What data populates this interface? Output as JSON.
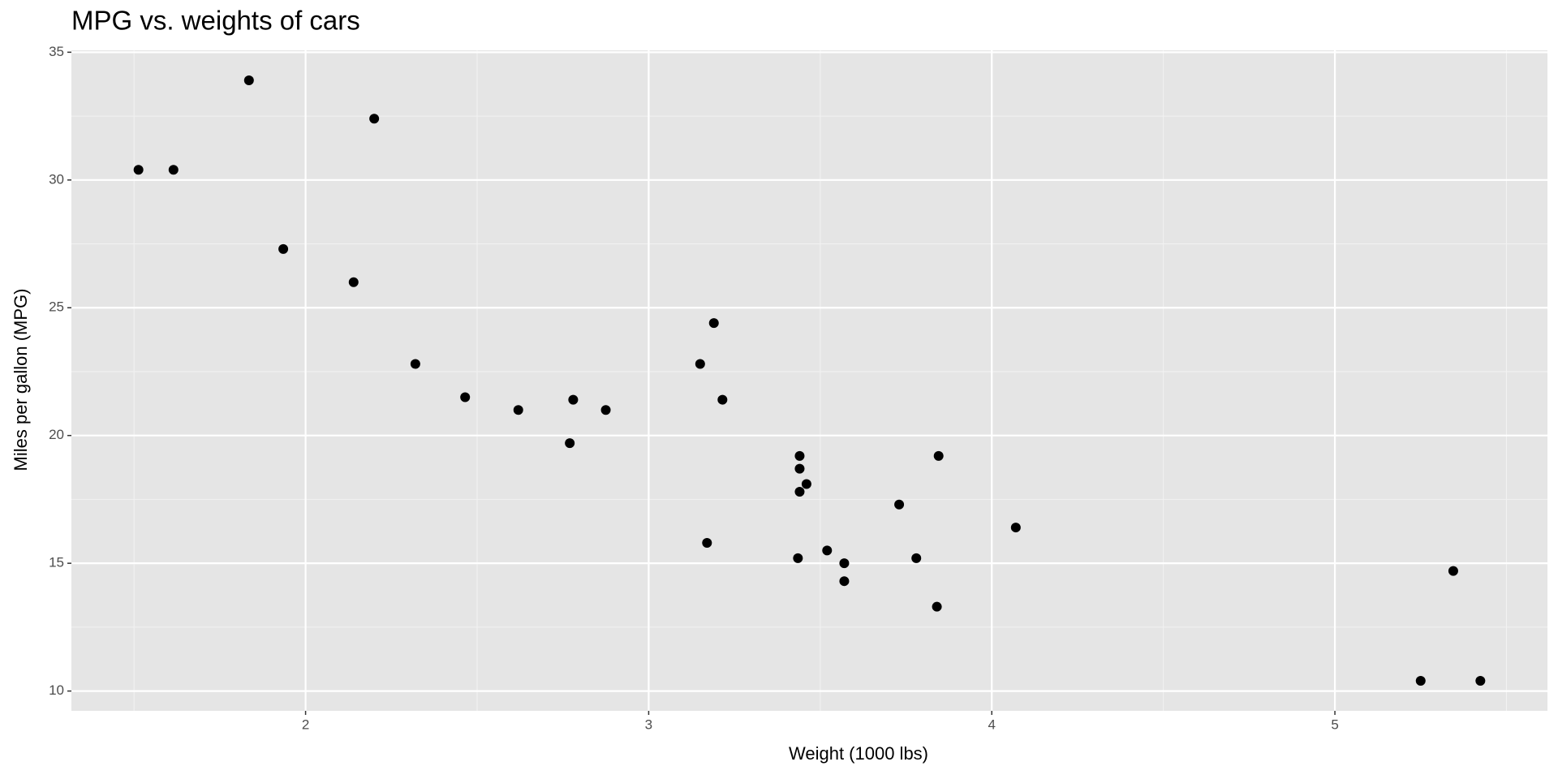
{
  "chart_data": {
    "type": "scatter",
    "title": "MPG vs. weights of cars",
    "x_label": "Weight (1000 lbs)",
    "y_label": "Miles per gallon (MPG)",
    "x": [
      2.62,
      2.875,
      2.32,
      3.215,
      3.44,
      3.46,
      3.57,
      3.19,
      3.15,
      3.44,
      3.44,
      4.07,
      3.73,
      3.78,
      5.25,
      5.424,
      5.345,
      2.2,
      1.615,
      1.835,
      2.465,
      3.52,
      3.435,
      3.84,
      3.845,
      1.935,
      2.14,
      1.513,
      3.17,
      2.77,
      3.57,
      2.78
    ],
    "values": [
      21.0,
      21.0,
      22.8,
      21.4,
      18.7,
      18.1,
      14.3,
      24.4,
      22.8,
      19.2,
      17.8,
      16.4,
      17.3,
      15.2,
      10.4,
      10.4,
      14.7,
      32.4,
      30.4,
      33.9,
      21.5,
      15.5,
      15.2,
      13.3,
      19.2,
      27.3,
      26.0,
      30.4,
      15.8,
      19.7,
      15.0,
      21.4
    ],
    "color": "#000000",
    "xlim": [
      1.3175,
      5.6195
    ],
    "ylim": [
      9.225,
      35.075
    ],
    "xticks": [
      2,
      3,
      4,
      5
    ],
    "yticks": [
      10,
      15,
      20,
      25,
      30,
      35
    ],
    "minor_xticks": [
      1.5,
      2.5,
      3.5,
      4.5,
      5.5
    ],
    "minor_yticks": [
      12.5,
      17.5,
      22.5,
      27.5,
      32.5
    ],
    "grid": true
  }
}
